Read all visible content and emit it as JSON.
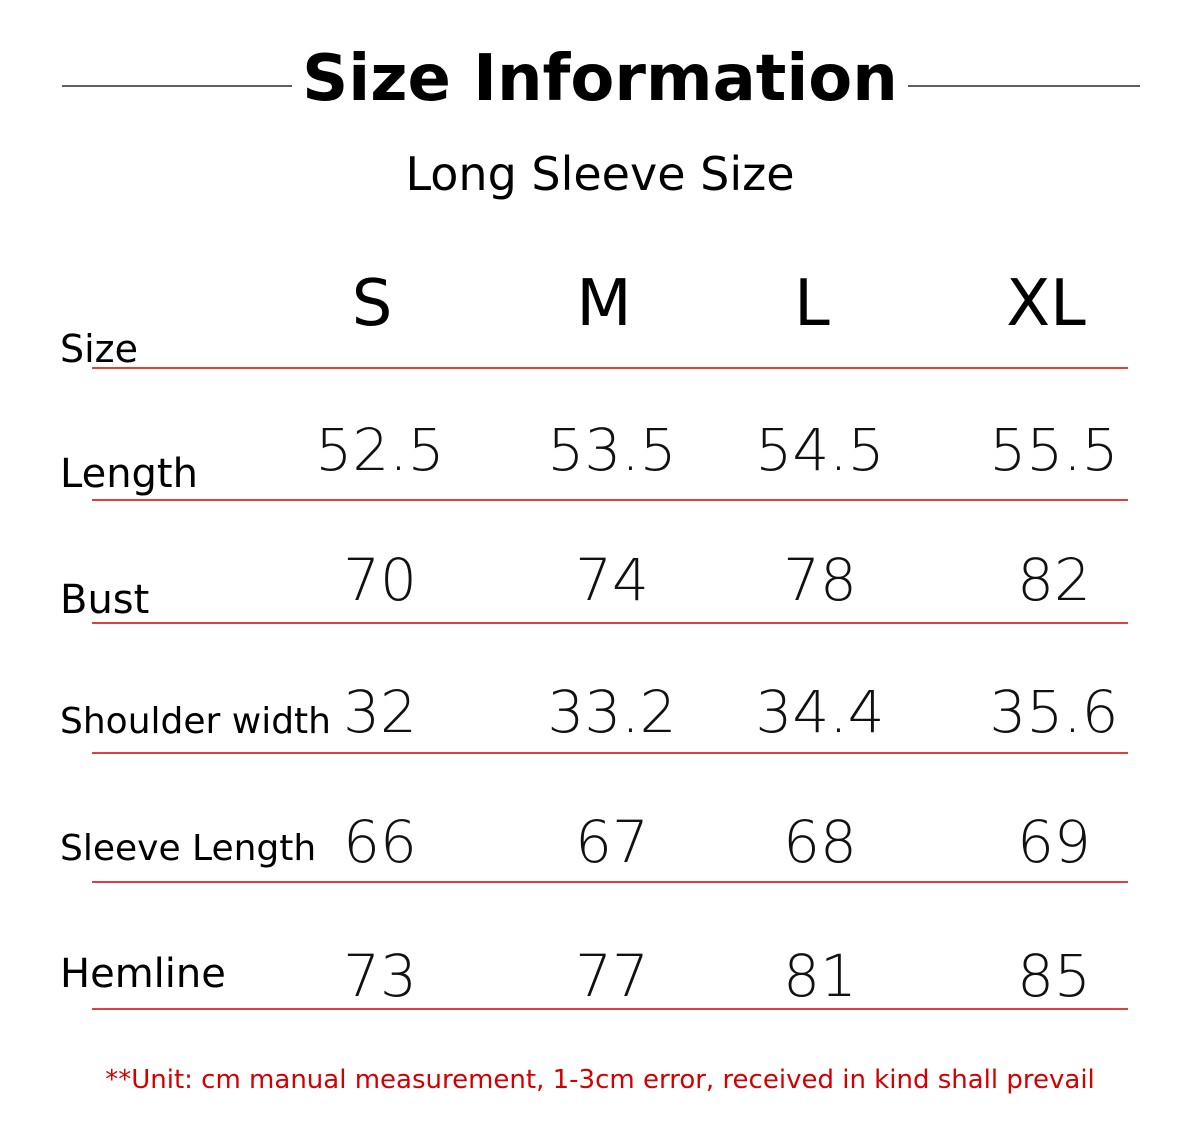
{
  "header": {
    "title": "Size Information",
    "subtitle": "Long Sleeve Size"
  },
  "table": {
    "columns": [
      "Size",
      "S",
      "M",
      "L",
      "XL"
    ],
    "rows": [
      [
        "Length",
        "52.5",
        "53.5",
        "54.5",
        "55.5"
      ],
      [
        "Bust",
        "70",
        "74",
        "78",
        "82"
      ],
      [
        "Shoulder width",
        "32",
        "33.2",
        "34.4",
        "35.6"
      ],
      [
        "Sleeve Length",
        "66",
        "67",
        "68",
        "69"
      ],
      [
        "Hemline",
        "73",
        "77",
        "81",
        "85"
      ]
    ]
  },
  "note": "**Unit: cm manual measurement, 1-3cm error, received in kind shall prevail"
}
